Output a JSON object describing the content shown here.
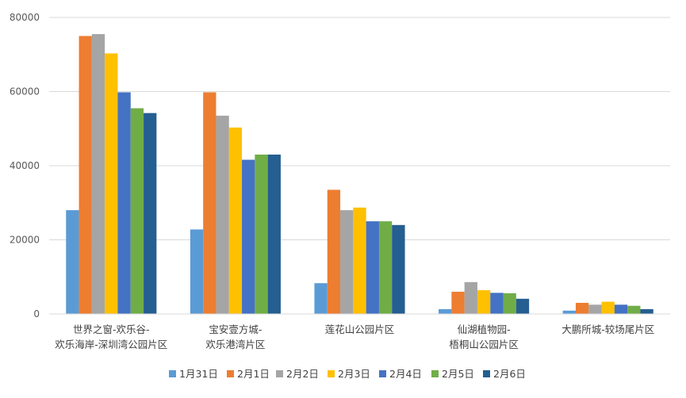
{
  "chart_data": {
    "type": "bar",
    "categories": [
      [
        "世界之窗-欢乐谷-",
        "欢乐海岸-深圳湾公园片区"
      ],
      [
        "宝安壹方城-",
        "欢乐港湾片区"
      ],
      [
        "莲花山公园片区"
      ],
      [
        "仙湖植物园-",
        "梧桐山公园片区"
      ],
      [
        "大鹏所城-较场尾片区"
      ]
    ],
    "series": [
      {
        "name": "1月31日",
        "color": "#5B9BD5",
        "values": [
          28000,
          22800,
          8300,
          1300,
          900
        ]
      },
      {
        "name": "2月1日",
        "color": "#ED7D31",
        "values": [
          75000,
          59800,
          33500,
          6000,
          3000
        ]
      },
      {
        "name": "2月2日",
        "color": "#A5A5A5",
        "values": [
          75500,
          53500,
          28000,
          8600,
          2500
        ]
      },
      {
        "name": "2月3日",
        "color": "#FFC000",
        "values": [
          70300,
          50300,
          28700,
          6400,
          3300
        ]
      },
      {
        "name": "2月4日",
        "color": "#4472C4",
        "values": [
          59800,
          41600,
          25000,
          5700,
          2500
        ]
      },
      {
        "name": "2月5日",
        "color": "#70AD47",
        "values": [
          55500,
          43000,
          25000,
          5600,
          2200
        ]
      },
      {
        "name": "2月6日",
        "color": "#255E91",
        "values": [
          54200,
          43000,
          24000,
          4100,
          1300
        ]
      }
    ],
    "ylim": [
      0,
      80000
    ],
    "yticks": [
      0,
      20000,
      40000,
      60000,
      80000
    ],
    "grid": true,
    "legend_position": "bottom",
    "title": "",
    "xlabel": "",
    "ylabel": ""
  }
}
